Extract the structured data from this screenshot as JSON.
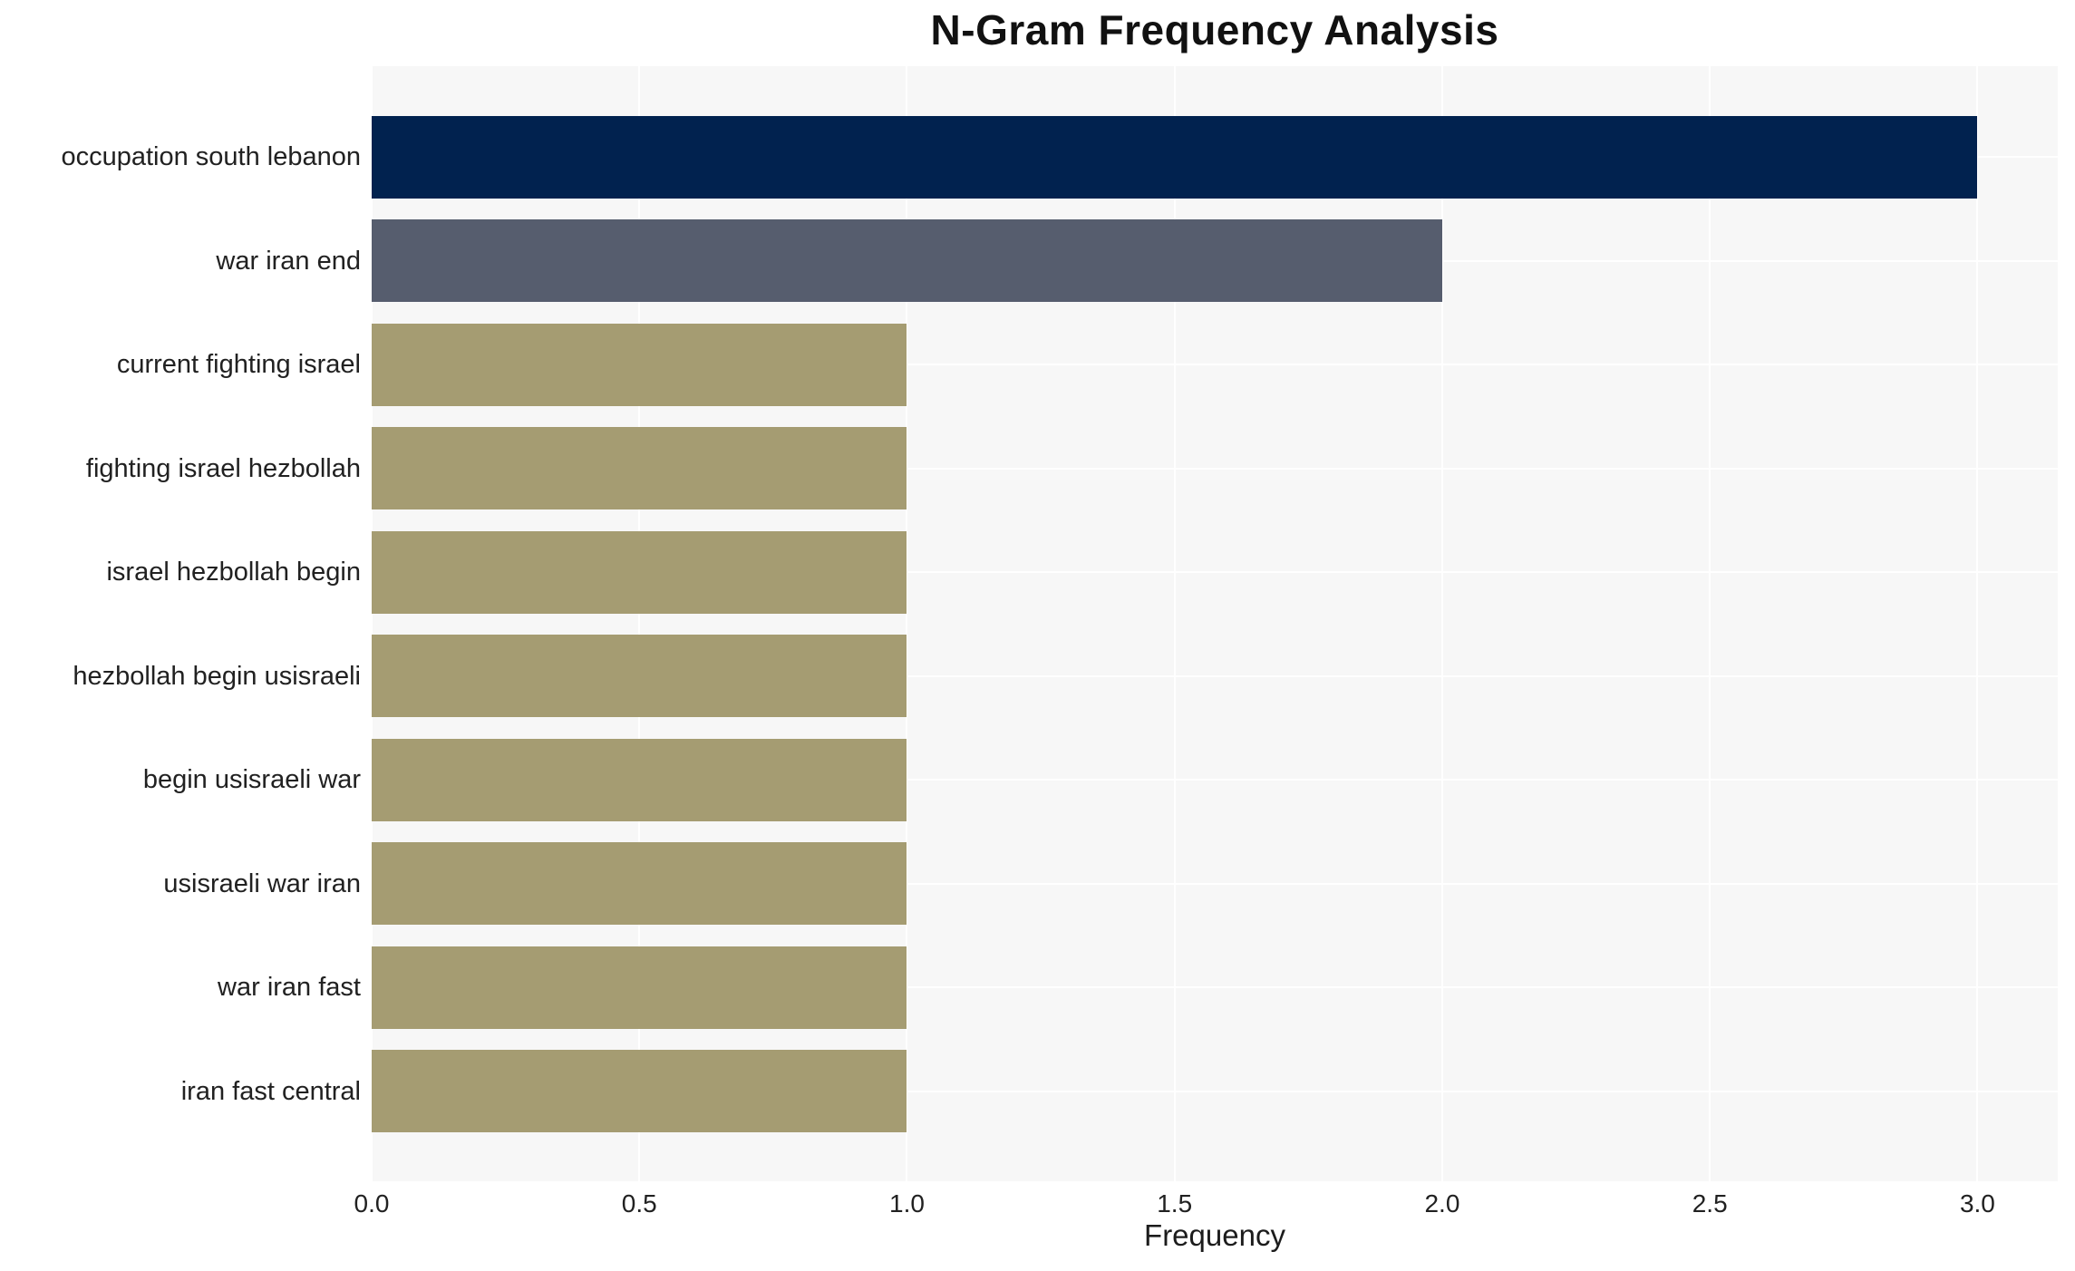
{
  "chart_data": {
    "type": "bar",
    "orientation": "horizontal",
    "title": "N-Gram Frequency Analysis",
    "xlabel": "Frequency",
    "ylabel": "",
    "categories": [
      "occupation south lebanon",
      "war iran end",
      "current fighting israel",
      "fighting israel hezbollah",
      "israel hezbollah begin",
      "hezbollah begin usisraeli",
      "begin usisraeli war",
      "usisraeli war iran",
      "war iran fast",
      "iran fast central"
    ],
    "values": [
      3,
      2,
      1,
      1,
      1,
      1,
      1,
      1,
      1,
      1
    ],
    "xlim": [
      0,
      3.15
    ],
    "xticks": [
      0,
      0.5,
      1,
      1.5,
      2,
      2.5,
      3
    ],
    "xtick_labels": [
      "0.0",
      "0.5",
      "1.0",
      "1.5",
      "2.0",
      "2.5",
      "3.0"
    ],
    "grid": true,
    "legend": false,
    "colors": {
      "bar_colors": [
        "#01224f",
        "#565d6e",
        "#a59c72",
        "#a59c72",
        "#a59c72",
        "#a59c72",
        "#a59c72",
        "#a59c72",
        "#a59c72",
        "#a59c72"
      ],
      "plot_background": "#f7f7f7",
      "figure_background": "#ffffff",
      "gridline": "#ffffff",
      "text": "#212121"
    }
  }
}
